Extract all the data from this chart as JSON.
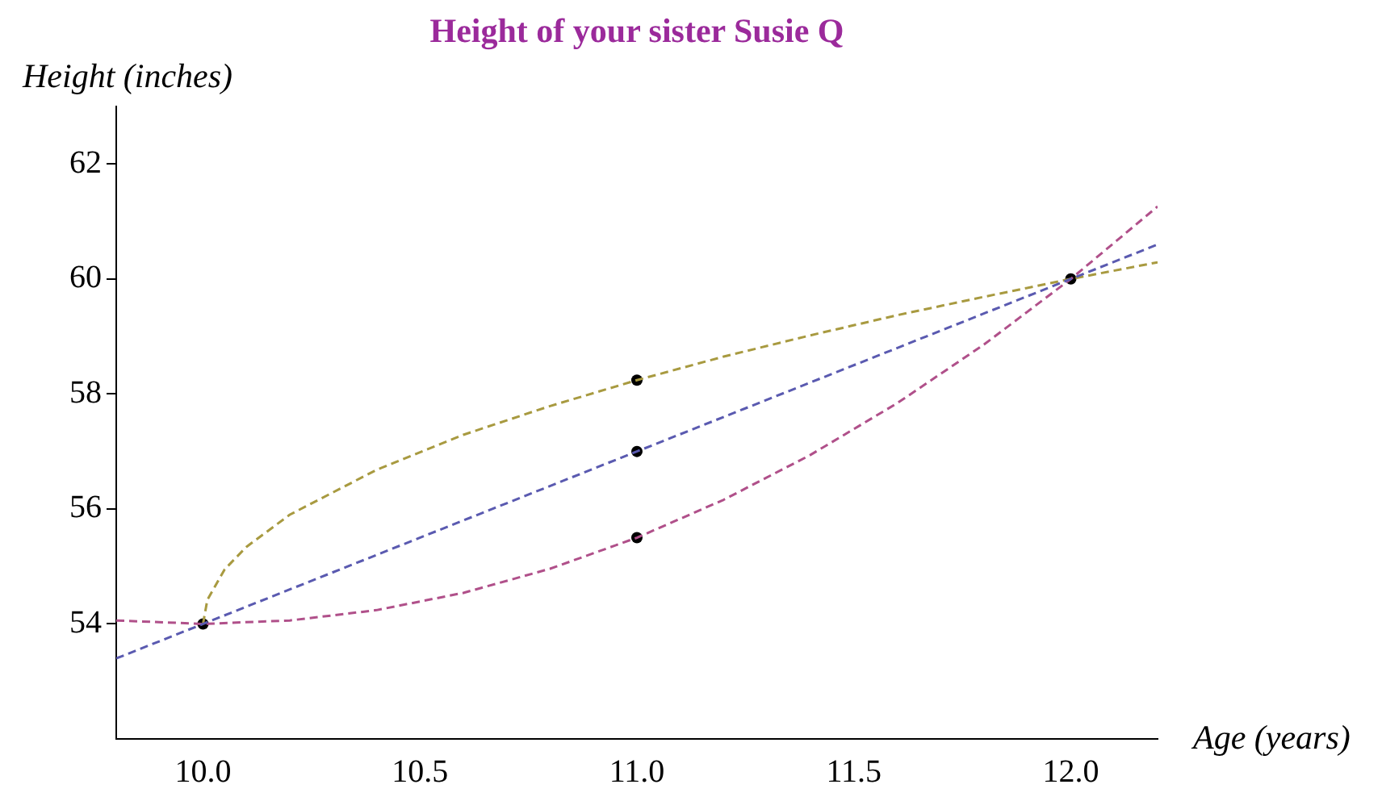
{
  "chart_data": {
    "type": "line",
    "title": "Height of your sister Susie Q",
    "xlabel": "Age (years)",
    "ylabel": "Height (inches)",
    "xlim": [
      9.8,
      12.2
    ],
    "xticks": [
      {
        "value": 10,
        "label": "10.0"
      },
      {
        "value": 10.5,
        "label": "10.5"
      },
      {
        "value": 11,
        "label": "11.0"
      },
      {
        "value": 11.5,
        "label": "11.5"
      },
      {
        "value": 12,
        "label": "12.0"
      }
    ],
    "ylim": [
      52,
      63
    ],
    "yticks": [
      54,
      56,
      58,
      60,
      62
    ],
    "grid": false,
    "legend": false,
    "line_style": "dashed",
    "marker": "none",
    "series": [
      {
        "type": "line",
        "color": "#5a5ab0",
        "x": [
          9.8,
          12.2
        ],
        "values": [
          53.4,
          60.6
        ]
      },
      {
        "type": "line",
        "color": "#b0508a",
        "x": [
          9.8,
          10,
          10.2,
          10.4,
          10.6,
          10.8,
          11,
          11.2,
          11.4,
          11.6,
          11.8,
          12,
          12.2
        ],
        "values": [
          54.06,
          54,
          54.06,
          54.24,
          54.54,
          54.96,
          55.5,
          56.16,
          56.94,
          57.84,
          58.86,
          60,
          61.26
        ]
      },
      {
        "type": "line",
        "color": "#a89a40",
        "x": [
          10,
          10.01,
          10.05,
          10.1,
          10.2,
          10.4,
          10.6,
          10.8,
          11,
          11.2,
          11.4,
          11.6,
          11.8,
          12,
          12.2
        ],
        "values": [
          54,
          54.42,
          54.95,
          55.34,
          55.9,
          56.68,
          57.29,
          57.79,
          58.24,
          58.65,
          59.02,
          59.37,
          59.69,
          60,
          60.29
        ]
      },
      {
        "type": "scatter",
        "color": "#000000",
        "marker": "circle",
        "x": [
          10,
          11,
          11,
          11,
          12
        ],
        "values": [
          54,
          57,
          58.24,
          55.5,
          60
        ]
      }
    ]
  }
}
